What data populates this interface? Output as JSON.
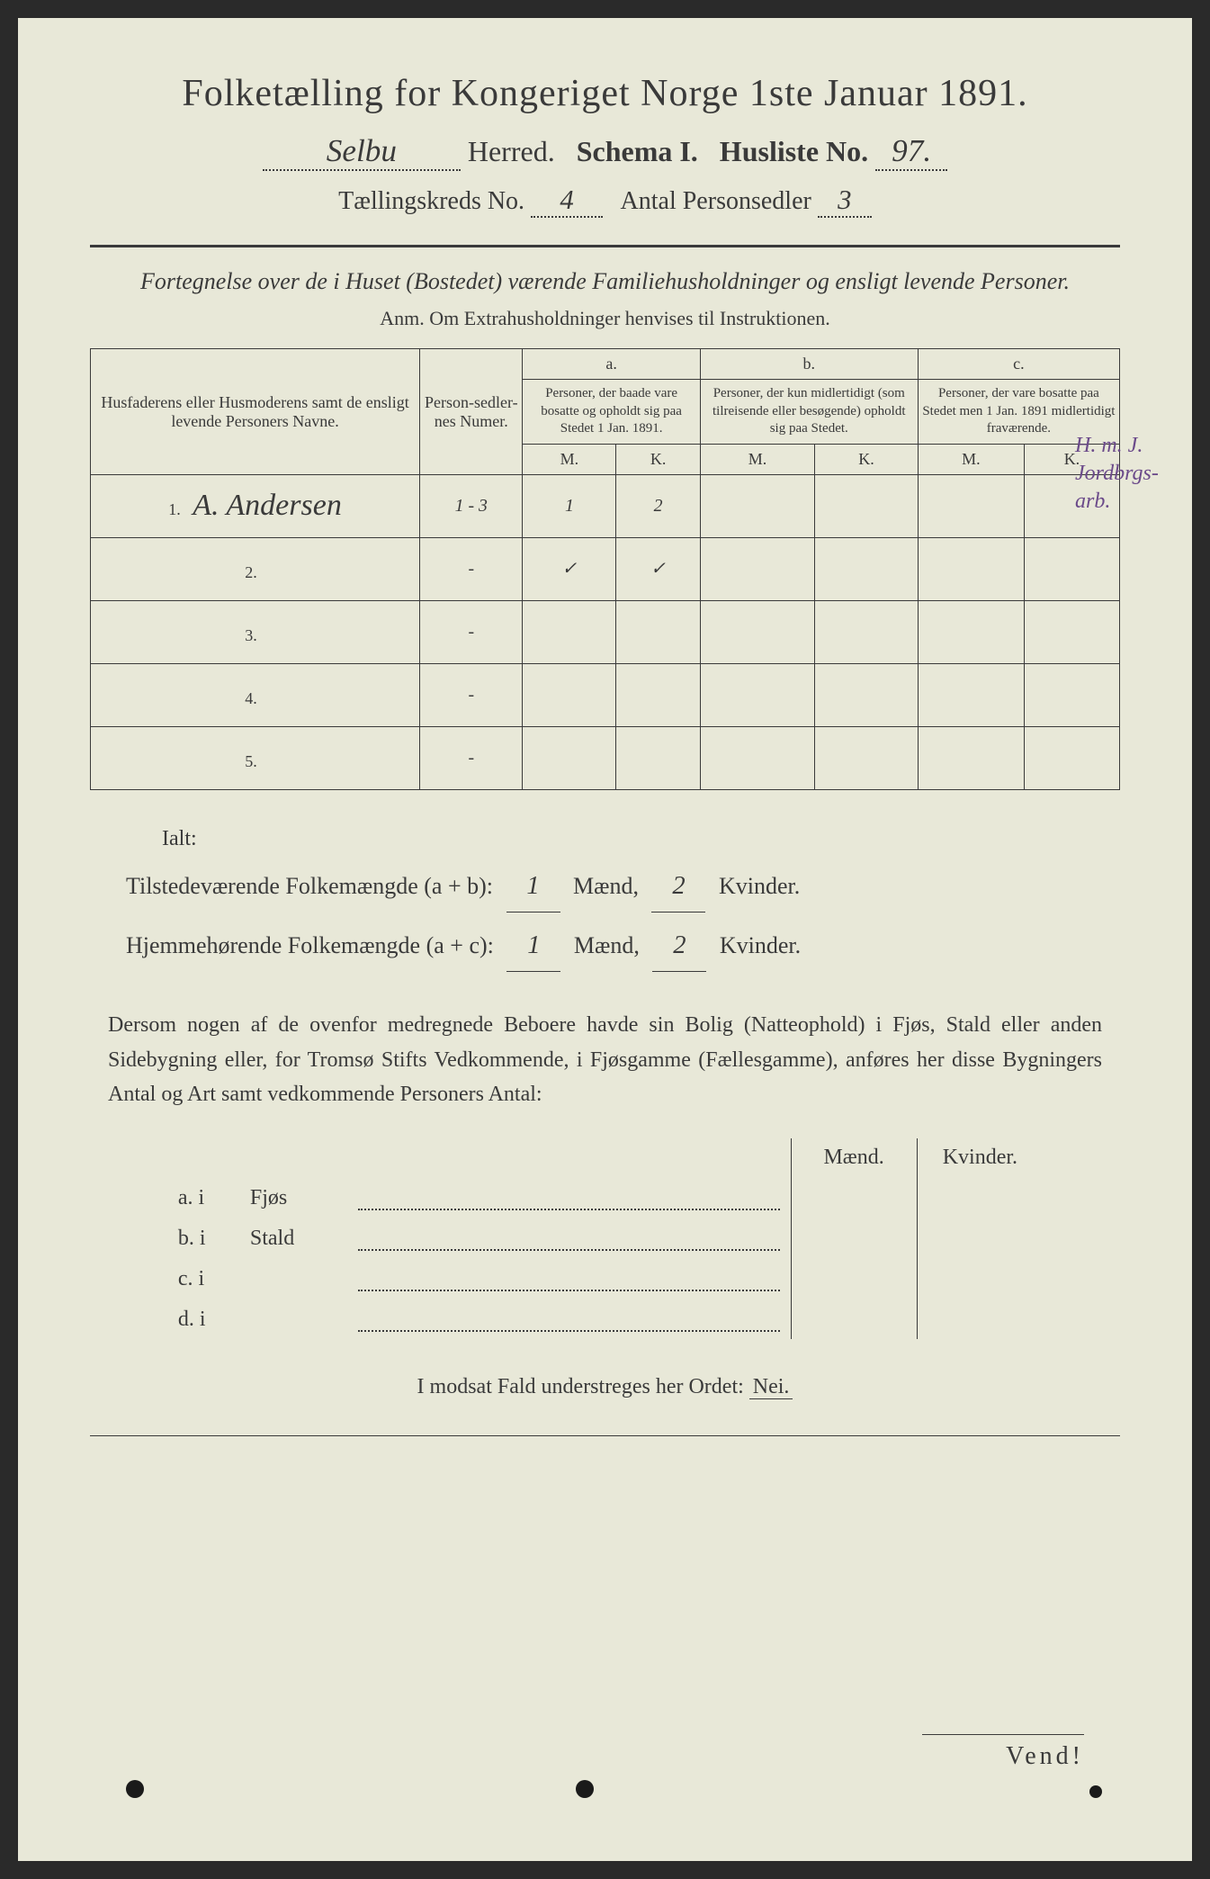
{
  "header": {
    "title": "Folketælling for Kongeriget Norge 1ste Januar 1891.",
    "herred_value": "Selbu",
    "herred_label": "Herred.",
    "schema_label": "Schema I.",
    "husliste_label": "Husliste No.",
    "husliste_value": "97.",
    "kreds_label": "Tællingskreds No.",
    "kreds_value": "4",
    "antal_label": "Antal Personsedler",
    "antal_value": "3"
  },
  "subtitle": "Fortegnelse over de i Huset (Bostedet) værende Familiehusholdninger og ensligt levende Personer.",
  "anm": "Anm.  Om Extrahusholdninger henvises til Instruktionen.",
  "table": {
    "col1_header": "Husfaderens eller Husmoderens samt de ensligt levende Personers Navne.",
    "col2_header": "Person-sedler-nes Numer.",
    "col_a_label": "a.",
    "col_a_text": "Personer, der baade vare bosatte og opholdt sig paa Stedet 1 Jan. 1891.",
    "col_b_label": "b.",
    "col_b_text": "Personer, der kun midlertidigt (som tilreisende eller besøgende) opholdt sig paa Stedet.",
    "col_c_label": "c.",
    "col_c_text": "Personer, der vare bosatte paa Stedet men 1 Jan. 1891 midlertidigt fraværende.",
    "m_label": "M.",
    "k_label": "K.",
    "rows": [
      {
        "num": "1.",
        "name": "A. Andersen",
        "sedler": "1 - 3",
        "a_m": "1",
        "a_k": "2",
        "b_m": "",
        "b_k": "",
        "c_m": "",
        "c_k": ""
      },
      {
        "num": "2.",
        "name": "",
        "sedler": "-",
        "a_m": "✓",
        "a_k": "✓",
        "b_m": "",
        "b_k": "",
        "c_m": "",
        "c_k": ""
      },
      {
        "num": "3.",
        "name": "",
        "sedler": "-",
        "a_m": "",
        "a_k": "",
        "b_m": "",
        "b_k": "",
        "c_m": "",
        "c_k": ""
      },
      {
        "num": "4.",
        "name": "",
        "sedler": "-",
        "a_m": "",
        "a_k": "",
        "b_m": "",
        "b_k": "",
        "c_m": "",
        "c_k": ""
      },
      {
        "num": "5.",
        "name": "",
        "sedler": "-",
        "a_m": "",
        "a_k": "",
        "b_m": "",
        "b_k": "",
        "c_m": "",
        "c_k": ""
      }
    ]
  },
  "margin_note": {
    "line1": "H. m. J.",
    "line2": "Jordbrgs-",
    "line3": "arb."
  },
  "ialt": {
    "label": "Ialt:",
    "line1_prefix": "Tilstedeværende Folkemængde (a + b):",
    "line1_m": "1",
    "line1_mid": "Mænd,",
    "line1_k": "2",
    "line1_suffix": "Kvinder.",
    "line2_prefix": "Hjemmehørende Folkemængde (a + c):",
    "line2_m": "1",
    "line2_mid": "Mænd,",
    "line2_k": "2",
    "line2_suffix": "Kvinder."
  },
  "paragraph": "Dersom nogen af de ovenfor medregnede Beboere havde sin Bolig (Natteophold) i Fjøs, Stald eller anden Sidebygning eller, for Tromsø Stifts Vedkommende, i Fjøsgamme (Fællesgamme), anføres her disse Bygningers Antal og Art samt vedkommende Personers Antal:",
  "building": {
    "maend": "Mænd.",
    "kvinder": "Kvinder.",
    "rows": [
      {
        "label": "a.  i",
        "type": "Fjøs"
      },
      {
        "label": "b.  i",
        "type": "Stald"
      },
      {
        "label": "c.  i",
        "type": ""
      },
      {
        "label": "d.  i",
        "type": ""
      }
    ]
  },
  "nei_line": "I modsat Fald understreges her Ordet:",
  "nei_word": "Nei.",
  "vend": "Vend!",
  "colors": {
    "paper": "#e8e8d8",
    "ink": "#3a3a3a",
    "purple_ink": "#6b4a8a",
    "background": "#2a2a2a"
  }
}
